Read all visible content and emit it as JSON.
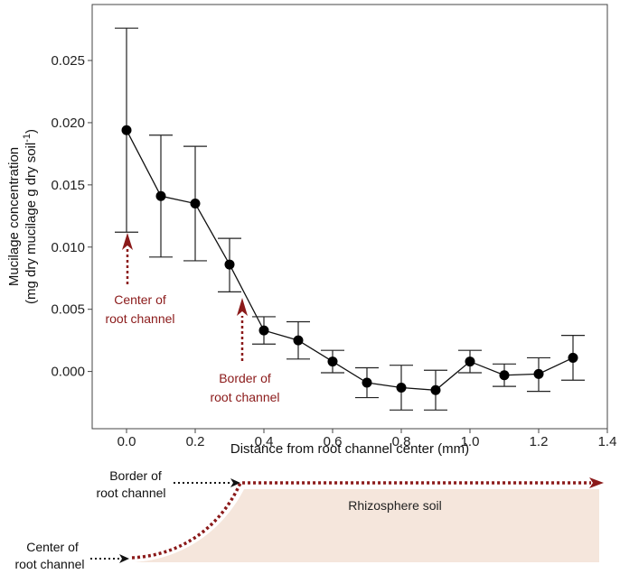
{
  "chart_data": {
    "type": "scatter",
    "title": "",
    "xlabel": "Distance from root channel center (mm)",
    "ylabel_line1": "Mucilage concentration",
    "ylabel_line2": "(mg dry mucilage g dry soil",
    "ylabel_sup": "-1",
    "ylabel_close": ")",
    "xlim": [
      -0.1,
      1.4
    ],
    "ylim": [
      -0.0046,
      0.0295
    ],
    "x_ticks": [
      "0.0",
      "0.2",
      "0.4",
      "0.6",
      "0.8",
      "1.0",
      "1.2",
      "1.4"
    ],
    "y_ticks": [
      "0.000",
      "0.005",
      "0.010",
      "0.015",
      "0.020",
      "0.025"
    ],
    "grid": false,
    "legend": "none",
    "series": [
      {
        "name": "Mucilage concentration",
        "x": [
          0.0,
          0.1,
          0.2,
          0.3,
          0.4,
          0.5,
          0.6,
          0.7,
          0.8,
          0.9,
          1.0,
          1.1,
          1.2,
          1.3
        ],
        "y": [
          0.0194,
          0.0141,
          0.0135,
          0.0086,
          0.0033,
          0.0025,
          0.0008,
          -0.0009,
          -0.0013,
          -0.0015,
          0.0008,
          -0.0003,
          -0.0002,
          0.0011
        ],
        "err_low": [
          0.0112,
          0.0092,
          0.0089,
          0.0064,
          0.0022,
          0.001,
          -0.0001,
          -0.0021,
          -0.0031,
          -0.0031,
          -0.0001,
          -0.0012,
          -0.0016,
          -0.0007
        ],
        "err_high": [
          0.0276,
          0.019,
          0.0181,
          0.0107,
          0.0044,
          0.004,
          0.0017,
          0.0003,
          0.0005,
          0.0001,
          0.0017,
          0.0006,
          0.0011,
          0.0029
        ]
      }
    ],
    "annotations": {
      "center_line1": "Center of",
      "center_line2": "root channel",
      "border_line1": "Border of",
      "border_line2": "root channel"
    }
  },
  "diagram": {
    "border_line1": "Border of",
    "border_line2": "root channel",
    "center_line1": "Center of",
    "center_line2": "root channel",
    "soil_label": "Rhizosphere soil",
    "soil_color": "#f5e6dc"
  },
  "colors": {
    "annotation_red": "#8b1a1a",
    "line": "#111111",
    "point": "#000000"
  }
}
